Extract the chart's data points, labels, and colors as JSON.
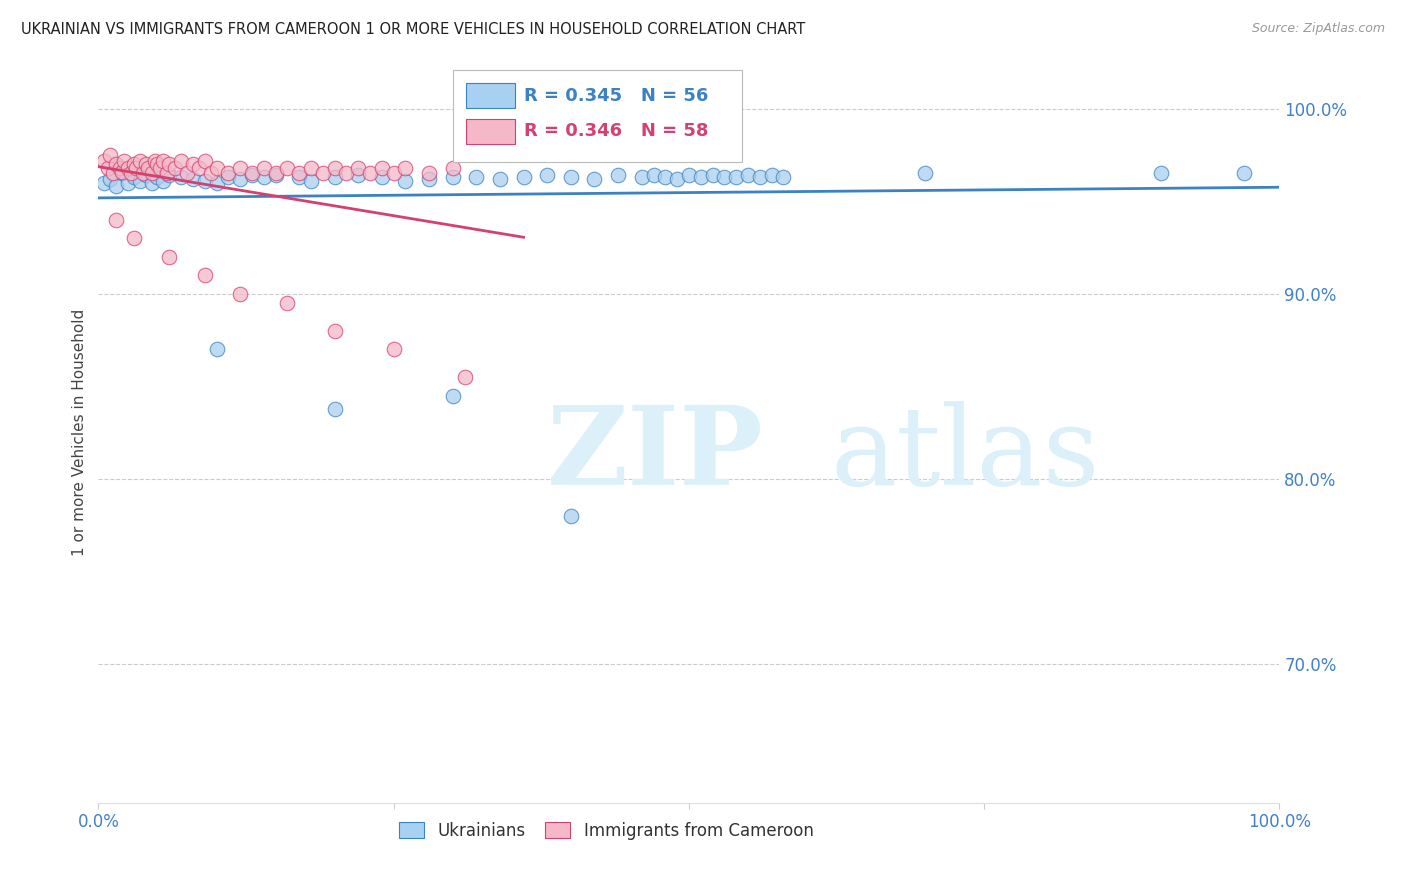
{
  "title": "UKRAINIAN VS IMMIGRANTS FROM CAMEROON 1 OR MORE VEHICLES IN HOUSEHOLD CORRELATION CHART",
  "source": "Source: ZipAtlas.com",
  "ylabel": "1 or more Vehicles in Household",
  "legend_label_blue": "Ukrainians",
  "legend_label_pink": "Immigrants from Cameroon",
  "r_blue": 0.345,
  "n_blue": 56,
  "r_pink": 0.346,
  "n_pink": 58,
  "blue_color": "#A8D0F0",
  "pink_color": "#F5B8C8",
  "trendline_blue": "#3B82C4",
  "trendline_pink": "#D44070",
  "axis_label_color": "#4080CC",
  "background_color": "#FFFFFF",
  "watermark_color": "#DCF0FA",
  "xlim": [
    0.0,
    1.0
  ],
  "ylim": [
    0.625,
    1.025
  ],
  "yticks": [
    0.7,
    0.8,
    0.9,
    1.0
  ],
  "ytick_labels": [
    "70.0%",
    "80.0%",
    "90.0%",
    "100.0%"
  ],
  "blue_x": [
    0.005,
    0.01,
    0.015,
    0.02,
    0.025,
    0.03,
    0.035,
    0.04,
    0.045,
    0.05,
    0.055,
    0.06,
    0.07,
    0.08,
    0.09,
    0.1,
    0.11,
    0.12,
    0.13,
    0.14,
    0.15,
    0.17,
    0.18,
    0.2,
    0.22,
    0.24,
    0.26,
    0.28,
    0.3,
    0.32,
    0.34,
    0.36,
    0.38,
    0.4,
    0.42,
    0.44,
    0.46,
    0.47,
    0.48,
    0.49,
    0.5,
    0.51,
    0.52,
    0.53,
    0.54,
    0.55,
    0.56,
    0.57,
    0.58,
    0.1,
    0.2,
    0.3,
    0.4,
    0.7,
    0.9,
    0.97
  ],
  "blue_y": [
    0.96,
    0.962,
    0.958,
    0.965,
    0.96,
    0.963,
    0.961,
    0.964,
    0.96,
    0.963,
    0.961,
    0.964,
    0.963,
    0.962,
    0.961,
    0.96,
    0.963,
    0.962,
    0.964,
    0.963,
    0.964,
    0.963,
    0.961,
    0.963,
    0.964,
    0.963,
    0.961,
    0.962,
    0.963,
    0.963,
    0.962,
    0.963,
    0.964,
    0.963,
    0.962,
    0.964,
    0.963,
    0.964,
    0.963,
    0.962,
    0.964,
    0.963,
    0.964,
    0.963,
    0.963,
    0.964,
    0.963,
    0.964,
    0.963,
    0.87,
    0.838,
    0.845,
    0.78,
    0.965,
    0.965,
    0.965
  ],
  "pink_x": [
    0.005,
    0.008,
    0.01,
    0.012,
    0.015,
    0.018,
    0.02,
    0.022,
    0.025,
    0.028,
    0.03,
    0.032,
    0.035,
    0.038,
    0.04,
    0.042,
    0.045,
    0.048,
    0.05,
    0.052,
    0.055,
    0.058,
    0.06,
    0.065,
    0.07,
    0.075,
    0.08,
    0.085,
    0.09,
    0.095,
    0.1,
    0.11,
    0.12,
    0.13,
    0.14,
    0.15,
    0.16,
    0.17,
    0.18,
    0.19,
    0.2,
    0.21,
    0.22,
    0.23,
    0.24,
    0.25,
    0.26,
    0.28,
    0.3,
    0.015,
    0.03,
    0.06,
    0.09,
    0.12,
    0.16,
    0.2,
    0.25,
    0.31
  ],
  "pink_y": [
    0.972,
    0.968,
    0.975,
    0.965,
    0.97,
    0.968,
    0.966,
    0.972,
    0.968,
    0.965,
    0.97,
    0.968,
    0.972,
    0.965,
    0.97,
    0.968,
    0.965,
    0.972,
    0.97,
    0.968,
    0.972,
    0.965,
    0.97,
    0.968,
    0.972,
    0.965,
    0.97,
    0.968,
    0.972,
    0.965,
    0.968,
    0.965,
    0.968,
    0.965,
    0.968,
    0.965,
    0.968,
    0.965,
    0.968,
    0.965,
    0.968,
    0.965,
    0.968,
    0.965,
    0.968,
    0.965,
    0.968,
    0.965,
    0.968,
    0.94,
    0.93,
    0.92,
    0.91,
    0.9,
    0.895,
    0.88,
    0.87,
    0.855
  ]
}
